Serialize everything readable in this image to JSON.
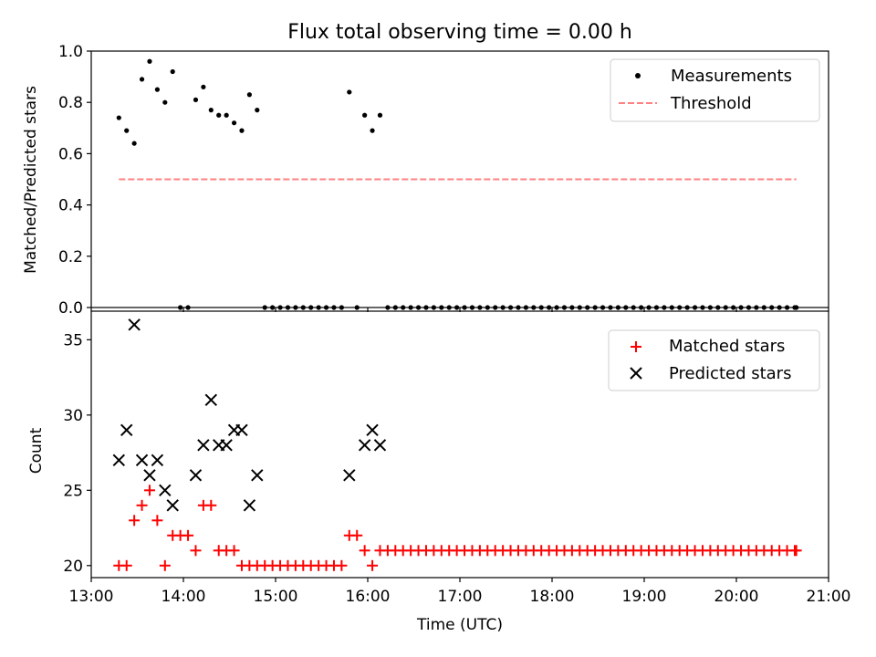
{
  "title": "Flux total observing time = 0.00 h",
  "chart_data": [
    {
      "type": "scatter",
      "ylabel": "Matched/Predicted stars",
      "xlim": [
        "13:00",
        "21:00"
      ],
      "ylim": [
        0,
        1.0
      ],
      "yticks": [
        "0.0",
        "0.2",
        "0.4",
        "0.6",
        "0.8",
        "1.0"
      ],
      "legend": "top-right",
      "series": [
        {
          "name": "Measurements",
          "marker": "dot",
          "color": "#000000",
          "points": [
            [
              "13:18",
              0.74
            ],
            [
              "13:23",
              0.69
            ],
            [
              "13:28",
              0.64
            ],
            [
              "13:33",
              0.89
            ],
            [
              "13:38",
              0.96
            ],
            [
              "13:43",
              0.85
            ],
            [
              "13:48",
              0.8
            ],
            [
              "13:53",
              0.92
            ],
            [
              "13:58",
              0.0
            ],
            [
              "14:03",
              0.0
            ],
            [
              "14:08",
              0.81
            ],
            [
              "14:13",
              0.86
            ],
            [
              "14:18",
              0.77
            ],
            [
              "14:23",
              0.75
            ],
            [
              "14:28",
              0.75
            ],
            [
              "14:33",
              0.72
            ],
            [
              "14:38",
              0.69
            ],
            [
              "14:43",
              0.83
            ],
            [
              "14:48",
              0.77
            ],
            [
              "14:53",
              0.0
            ],
            [
              "14:58",
              0.0
            ],
            [
              "15:03",
              0.0
            ],
            [
              "15:08",
              0.0
            ],
            [
              "15:13",
              0.0
            ],
            [
              "15:18",
              0.0
            ],
            [
              "15:23",
              0.0
            ],
            [
              "15:28",
              0.0
            ],
            [
              "15:33",
              0.0
            ],
            [
              "15:38",
              0.0
            ],
            [
              "15:43",
              0.0
            ],
            [
              "15:48",
              0.84
            ],
            [
              "15:53",
              0.0
            ],
            [
              "15:58",
              0.75
            ],
            [
              "16:03",
              0.69
            ],
            [
              "16:08",
              0.75
            ],
            [
              "16:13",
              0.0
            ],
            [
              "16:18",
              0.0
            ],
            [
              "16:23",
              0.0
            ],
            [
              "16:28",
              0.0
            ],
            [
              "16:33",
              0.0
            ],
            [
              "16:38",
              0.0
            ],
            [
              "16:43",
              0.0
            ],
            [
              "16:48",
              0.0
            ],
            [
              "16:53",
              0.0
            ],
            [
              "16:58",
              0.0
            ],
            [
              "17:03",
              0.0
            ],
            [
              "17:08",
              0.0
            ],
            [
              "17:13",
              0.0
            ],
            [
              "17:18",
              0.0
            ],
            [
              "17:23",
              0.0
            ],
            [
              "17:28",
              0.0
            ],
            [
              "17:33",
              0.0
            ],
            [
              "17:38",
              0.0
            ],
            [
              "17:43",
              0.0
            ],
            [
              "17:48",
              0.0
            ],
            [
              "17:53",
              0.0
            ],
            [
              "17:58",
              0.0
            ],
            [
              "18:03",
              0.0
            ],
            [
              "18:08",
              0.0
            ],
            [
              "18:13",
              0.0
            ],
            [
              "18:18",
              0.0
            ],
            [
              "18:23",
              0.0
            ],
            [
              "18:28",
              0.0
            ],
            [
              "18:33",
              0.0
            ],
            [
              "18:38",
              0.0
            ],
            [
              "18:43",
              0.0
            ],
            [
              "18:48",
              0.0
            ],
            [
              "18:53",
              0.0
            ],
            [
              "18:58",
              0.0
            ],
            [
              "19:03",
              0.0
            ],
            [
              "19:08",
              0.0
            ],
            [
              "19:13",
              0.0
            ],
            [
              "19:18",
              0.0
            ],
            [
              "19:23",
              0.0
            ],
            [
              "19:28",
              0.0
            ],
            [
              "19:33",
              0.0
            ],
            [
              "19:38",
              0.0
            ],
            [
              "19:43",
              0.0
            ],
            [
              "19:48",
              0.0
            ],
            [
              "19:53",
              0.0
            ],
            [
              "19:58",
              0.0
            ],
            [
              "20:03",
              0.0
            ],
            [
              "20:08",
              0.0
            ],
            [
              "20:13",
              0.0
            ],
            [
              "20:18",
              0.0
            ],
            [
              "20:23",
              0.0
            ],
            [
              "20:28",
              0.0
            ],
            [
              "20:33",
              0.0
            ],
            [
              "20:38",
              0.0
            ],
            [
              "20:39",
              0.0
            ]
          ]
        },
        {
          "name": "Threshold",
          "marker": "dashed-line",
          "color": "#ff8080",
          "points": [
            [
              "13:18",
              0.5
            ],
            [
              "20:39",
              0.5
            ]
          ]
        }
      ]
    },
    {
      "type": "scatter",
      "xlabel": "Time (UTC)",
      "ylabel": "Count",
      "xlim": [
        "13:00",
        "21:00"
      ],
      "ylim": [
        19.2,
        36.9
      ],
      "xticks": [
        "13:00",
        "14:00",
        "15:00",
        "16:00",
        "17:00",
        "18:00",
        "19:00",
        "20:00",
        "21:00"
      ],
      "yticks": [
        "20",
        "25",
        "30",
        "35"
      ],
      "legend": "top-right",
      "series": [
        {
          "name": "Matched stars",
          "marker": "plus",
          "color": "#ff0000",
          "points": [
            [
              "13:18",
              20
            ],
            [
              "13:23",
              20
            ],
            [
              "13:28",
              23
            ],
            [
              "13:33",
              24
            ],
            [
              "13:38",
              25
            ],
            [
              "13:43",
              23
            ],
            [
              "13:48",
              20
            ],
            [
              "13:53",
              22
            ],
            [
              "13:58",
              22
            ],
            [
              "14:03",
              22
            ],
            [
              "14:08",
              21
            ],
            [
              "14:13",
              24
            ],
            [
              "14:18",
              24
            ],
            [
              "14:23",
              21
            ],
            [
              "14:28",
              21
            ],
            [
              "14:33",
              21
            ],
            [
              "14:38",
              20
            ],
            [
              "14:43",
              20
            ],
            [
              "14:48",
              20
            ],
            [
              "14:53",
              20
            ],
            [
              "14:58",
              20
            ],
            [
              "15:03",
              20
            ],
            [
              "15:08",
              20
            ],
            [
              "15:13",
              20
            ],
            [
              "15:18",
              20
            ],
            [
              "15:23",
              20
            ],
            [
              "15:28",
              20
            ],
            [
              "15:33",
              20
            ],
            [
              "15:38",
              20
            ],
            [
              "15:43",
              20
            ],
            [
              "15:48",
              22
            ],
            [
              "15:53",
              22
            ],
            [
              "15:58",
              21
            ],
            [
              "16:03",
              20
            ],
            [
              "16:08",
              21
            ],
            [
              "16:13",
              21
            ],
            [
              "16:18",
              21
            ],
            [
              "16:23",
              21
            ],
            [
              "16:28",
              21
            ],
            [
              "16:33",
              21
            ],
            [
              "16:38",
              21
            ],
            [
              "16:43",
              21
            ],
            [
              "16:48",
              21
            ],
            [
              "16:53",
              21
            ],
            [
              "16:58",
              21
            ],
            [
              "17:03",
              21
            ],
            [
              "17:08",
              21
            ],
            [
              "17:13",
              21
            ],
            [
              "17:18",
              21
            ],
            [
              "17:23",
              21
            ],
            [
              "17:28",
              21
            ],
            [
              "17:33",
              21
            ],
            [
              "17:38",
              21
            ],
            [
              "17:43",
              21
            ],
            [
              "17:48",
              21
            ],
            [
              "17:53",
              21
            ],
            [
              "17:58",
              21
            ],
            [
              "18:03",
              21
            ],
            [
              "18:08",
              21
            ],
            [
              "18:13",
              21
            ],
            [
              "18:18",
              21
            ],
            [
              "18:23",
              21
            ],
            [
              "18:28",
              21
            ],
            [
              "18:33",
              21
            ],
            [
              "18:38",
              21
            ],
            [
              "18:43",
              21
            ],
            [
              "18:48",
              21
            ],
            [
              "18:53",
              21
            ],
            [
              "18:58",
              21
            ],
            [
              "19:03",
              21
            ],
            [
              "19:08",
              21
            ],
            [
              "19:13",
              21
            ],
            [
              "19:18",
              21
            ],
            [
              "19:23",
              21
            ],
            [
              "19:28",
              21
            ],
            [
              "19:33",
              21
            ],
            [
              "19:38",
              21
            ],
            [
              "19:43",
              21
            ],
            [
              "19:48",
              21
            ],
            [
              "19:53",
              21
            ],
            [
              "19:58",
              21
            ],
            [
              "20:03",
              21
            ],
            [
              "20:08",
              21
            ],
            [
              "20:13",
              21
            ],
            [
              "20:18",
              21
            ],
            [
              "20:23",
              21
            ],
            [
              "20:28",
              21
            ],
            [
              "20:33",
              21
            ],
            [
              "20:38",
              21
            ],
            [
              "20:39",
              21
            ]
          ]
        },
        {
          "name": "Predicted stars",
          "marker": "x",
          "color": "#000000",
          "points": [
            [
              "13:18",
              27
            ],
            [
              "13:23",
              29
            ],
            [
              "13:28",
              36
            ],
            [
              "13:33",
              27
            ],
            [
              "13:38",
              26
            ],
            [
              "13:43",
              27
            ],
            [
              "13:48",
              25
            ],
            [
              "13:53",
              24
            ],
            [
              "14:08",
              26
            ],
            [
              "14:13",
              28
            ],
            [
              "14:18",
              31
            ],
            [
              "14:23",
              28
            ],
            [
              "14:28",
              28
            ],
            [
              "14:33",
              29
            ],
            [
              "14:38",
              29
            ],
            [
              "14:43",
              24
            ],
            [
              "14:48",
              26
            ],
            [
              "15:48",
              26
            ],
            [
              "15:58",
              28
            ],
            [
              "16:03",
              29
            ],
            [
              "16:08",
              28
            ]
          ]
        }
      ]
    }
  ]
}
